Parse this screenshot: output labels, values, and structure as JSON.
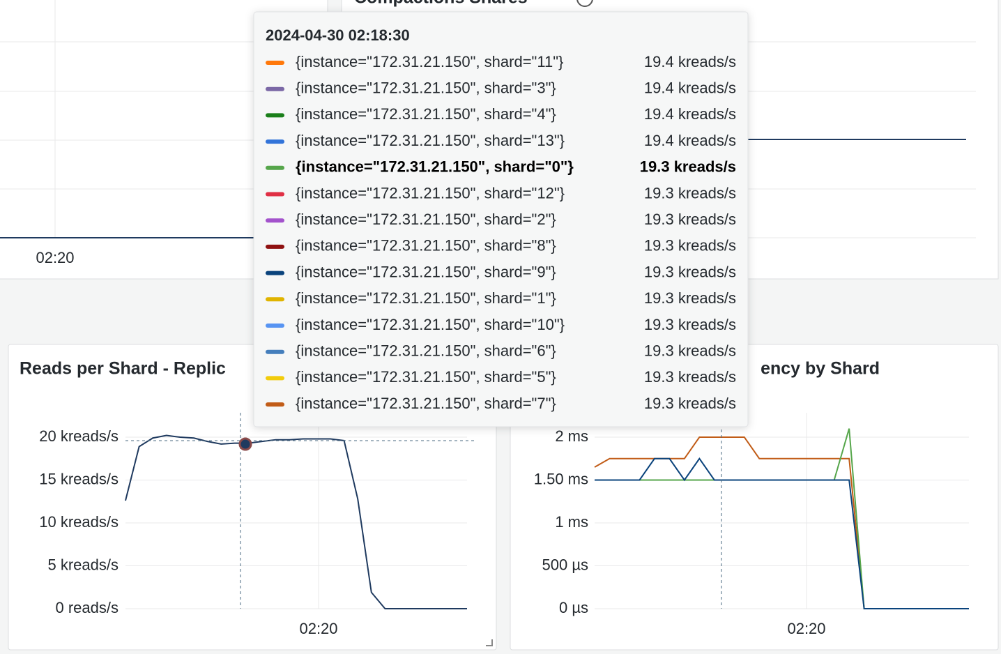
{
  "top_left_panel": {
    "x_tick": "02:20"
  },
  "top_right_panel": {
    "title": "Compactions Shares"
  },
  "reads_panel": {
    "title": "Reads per Shard - Replic",
    "x_tick": "02:20",
    "chart_data": {
      "type": "line",
      "series": [
        {
          "color": "#1f3a5f",
          "values": [
            12.6,
            18.9,
            19.9,
            20.2,
            20.0,
            19.9,
            19.5,
            19.2,
            19.3,
            19.3,
            19.5,
            19.7,
            19.7,
            19.8,
            19.8,
            19.8,
            19.6,
            12.8,
            1.9,
            0,
            0,
            0,
            0,
            0,
            0,
            0
          ]
        }
      ],
      "ylim": [
        0,
        20
      ],
      "yticks": [
        {
          "value": 0,
          "label": "0 reads/s"
        },
        {
          "value": 5,
          "label": "5 kreads/s"
        },
        {
          "value": 10,
          "label": "10 kreads/s"
        },
        {
          "value": 15,
          "label": "15 kreads/s"
        },
        {
          "value": 20,
          "label": "20 kreads/s"
        }
      ]
    }
  },
  "latency_panel": {
    "title": "ency by Shard",
    "x_tick": "02:20",
    "chart_data": {
      "type": "line",
      "series": [
        {
          "color": "#c15c17",
          "values": [
            1.65,
            1.75,
            1.75,
            1.75,
            1.75,
            1.75,
            1.75,
            2,
            2,
            2,
            2,
            1.75,
            1.75,
            1.75,
            1.75,
            1.75,
            1.75,
            1.75,
            0,
            0,
            0,
            0,
            0,
            0,
            0,
            0
          ]
        },
        {
          "color": "#56a64b",
          "values": [
            1.5,
            1.5,
            1.5,
            1.5,
            1.5,
            1.5,
            1.5,
            1.5,
            1.5,
            1.5,
            1.5,
            1.5,
            1.5,
            1.5,
            1.5,
            1.5,
            1.5,
            2.1,
            0,
            0,
            0,
            0,
            0,
            0,
            0,
            0
          ]
        },
        {
          "color": "#0a437c",
          "values": [
            1.5,
            1.5,
            1.5,
            1.5,
            1.75,
            1.75,
            1.5,
            1.75,
            1.5,
            1.5,
            1.5,
            1.5,
            1.5,
            1.5,
            1.5,
            1.5,
            1.5,
            1.5,
            0,
            0,
            0,
            0,
            0,
            0,
            0,
            0
          ]
        }
      ],
      "ylim": [
        0,
        2
      ],
      "yticks": [
        {
          "value": 0,
          "label": "0 µs"
        },
        {
          "value": 0.5,
          "label": "500 µs"
        },
        {
          "value": 1,
          "label": "1 ms"
        },
        {
          "value": 1.5,
          "label": "1.50 ms"
        },
        {
          "value": 2,
          "label": "2 ms"
        }
      ]
    }
  },
  "tooltip": {
    "time": "2024-04-30 02:18:30",
    "rows": [
      {
        "color": "#ff780a",
        "label": "{instance=\"172.31.21.150\", shard=\"11\"}",
        "value": "19.4 kreads/s"
      },
      {
        "color": "#7b68a6",
        "label": "{instance=\"172.31.21.150\", shard=\"3\"}",
        "value": "19.4 kreads/s"
      },
      {
        "color": "#1a7f1a",
        "label": "{instance=\"172.31.21.150\", shard=\"4\"}",
        "value": "19.4 kreads/s"
      },
      {
        "color": "#3274d9",
        "label": "{instance=\"172.31.21.150\", shard=\"13\"}",
        "value": "19.4 kreads/s"
      },
      {
        "color": "#56a64b",
        "label": "{instance=\"172.31.21.150\", shard=\"0\"}",
        "value": "19.3 kreads/s",
        "bold": true
      },
      {
        "color": "#e02f44",
        "label": "{instance=\"172.31.21.150\", shard=\"12\"}",
        "value": "19.3 kreads/s"
      },
      {
        "color": "#a352cc",
        "label": "{instance=\"172.31.21.150\", shard=\"2\"}",
        "value": "19.3 kreads/s"
      },
      {
        "color": "#8f1111",
        "label": "{instance=\"172.31.21.150\", shard=\"8\"}",
        "value": "19.3 kreads/s"
      },
      {
        "color": "#0a437c",
        "label": "{instance=\"172.31.21.150\", shard=\"9\"}",
        "value": "19.3 kreads/s"
      },
      {
        "color": "#e0b400",
        "label": "{instance=\"172.31.21.150\", shard=\"1\"}",
        "value": "19.3 kreads/s"
      },
      {
        "color": "#5794f2",
        "label": "{instance=\"172.31.21.150\", shard=\"10\"}",
        "value": "19.3 kreads/s"
      },
      {
        "color": "#447ebc",
        "label": "{instance=\"172.31.21.150\", shard=\"6\"}",
        "value": "19.3 kreads/s"
      },
      {
        "color": "#f2cc0c",
        "label": "{instance=\"172.31.21.150\", shard=\"5\"}",
        "value": "19.3 kreads/s"
      },
      {
        "color": "#c15c17",
        "label": "{instance=\"172.31.21.150\", shard=\"7\"}",
        "value": "19.3 kreads/s"
      }
    ]
  }
}
